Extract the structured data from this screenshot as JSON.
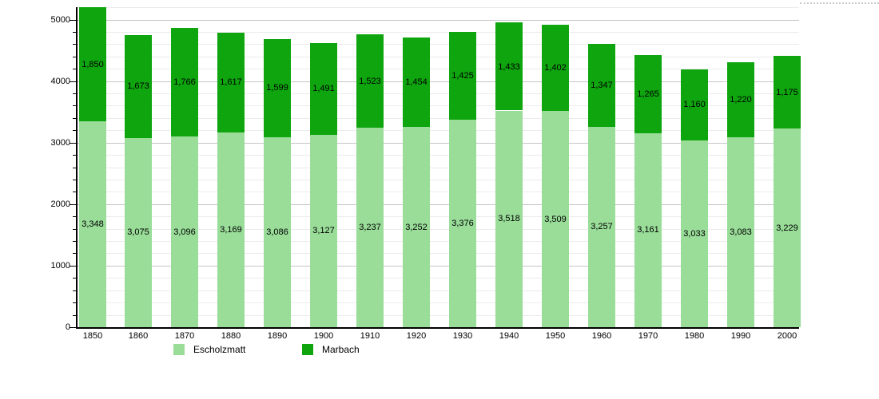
{
  "chart_data": {
    "type": "bar",
    "stacked": true,
    "title": "",
    "xlabel": "",
    "ylabel": "",
    "categories": [
      "1850",
      "1860",
      "1870",
      "1880",
      "1890",
      "1900",
      "1910",
      "1920",
      "1930",
      "1940",
      "1950",
      "1960",
      "1970",
      "1980",
      "1990",
      "2000"
    ],
    "series": [
      {
        "name": "Escholzmatt",
        "color": "#99dd99",
        "values": [
          3348,
          3075,
          3096,
          3169,
          3086,
          3127,
          3237,
          3252,
          3376,
          3518,
          3509,
          3257,
          3161,
          3033,
          3083,
          3229
        ],
        "value_labels": [
          "3,348",
          "3,075",
          "3,096",
          "3,169",
          "3,086",
          "3,127",
          "3,237",
          "3,252",
          "3,376",
          "3,518",
          "3,509",
          "3,257",
          "3,161",
          "3,033",
          "3,083",
          "3,229"
        ]
      },
      {
        "name": "Marbach",
        "color": "#0ea50e",
        "values": [
          1850,
          1673,
          1766,
          1617,
          1599,
          1491,
          1523,
          1454,
          1425,
          1433,
          1402,
          1347,
          1265,
          1160,
          1220,
          1175
        ],
        "value_labels": [
          "1,850",
          "1,673",
          "1,766",
          "1,617",
          "1,599",
          "1,491",
          "1,523",
          "1,454",
          "1,425",
          "1,433",
          "1,402",
          "1,347",
          "1,265",
          "1,160",
          "1,220",
          "1,175"
        ]
      }
    ],
    "ylim": [
      0,
      5200
    ],
    "ytick_labels": [
      "0",
      "1000",
      "2000",
      "3000",
      "4000",
      "5000"
    ],
    "ytick_major_step": 1000,
    "ytick_minor_step": 200,
    "grid": true,
    "gridline_major_color": "#c6c6c6",
    "gridline_minor_color": "#ebebeb",
    "legend_position": "bottom",
    "value_labels_shown": true
  }
}
